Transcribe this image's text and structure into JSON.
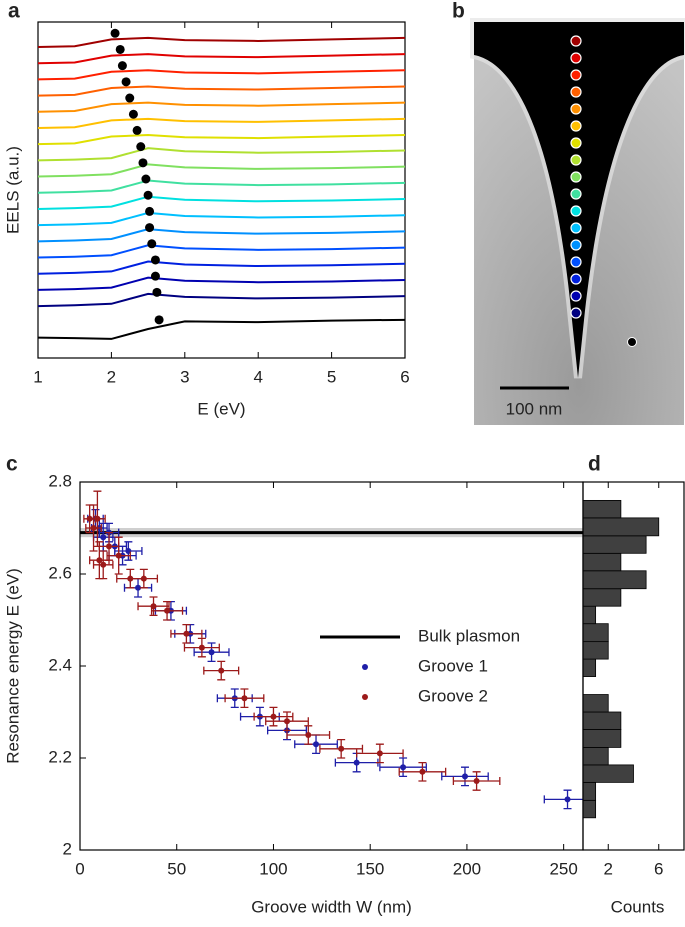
{
  "chart_data": [
    {
      "type": "line",
      "panel_label": "a",
      "xlabel": "E (eV)",
      "ylabel": "EELS (a.u.)",
      "xlim": [
        1,
        6
      ],
      "xticks": [
        1,
        2,
        3,
        4,
        5,
        6
      ],
      "ylim": [
        0,
        22
      ],
      "x": [
        1,
        1.5,
        2,
        2.5,
        3,
        4,
        5,
        6
      ],
      "series": [
        {
          "color": "#000000",
          "values": [
            1.33,
            1.3,
            1.25,
            1.9,
            2.4,
            2.35,
            2.45,
            2.5
          ],
          "peak_x": 2.65,
          "peak_y": 2.5
        },
        {
          "color": "#000080",
          "values": [
            3.4,
            3.45,
            3.55,
            4.2,
            4.0,
            3.9,
            3.95,
            4.05
          ],
          "peak_x": 2.62,
          "peak_y": 4.3
        },
        {
          "color": "#0000b0",
          "values": [
            4.46,
            4.51,
            4.61,
            5.26,
            5.06,
            4.96,
            5.01,
            5.11
          ],
          "peak_x": 2.6,
          "peak_y": 5.36
        },
        {
          "color": "#0020e0",
          "values": [
            5.52,
            5.57,
            5.67,
            6.32,
            6.12,
            6.02,
            6.07,
            6.17
          ],
          "peak_x": 2.6,
          "peak_y": 6.42
        },
        {
          "color": "#0050ff",
          "values": [
            6.58,
            6.63,
            6.73,
            7.38,
            7.18,
            7.08,
            7.13,
            7.23
          ],
          "peak_x": 2.55,
          "peak_y": 7.48
        },
        {
          "color": "#0090ff",
          "values": [
            7.64,
            7.69,
            7.79,
            8.44,
            8.24,
            8.14,
            8.19,
            8.29
          ],
          "peak_x": 2.52,
          "peak_y": 8.54
        },
        {
          "color": "#00c0ff",
          "values": [
            8.7,
            8.75,
            8.85,
            9.5,
            9.3,
            9.2,
            9.25,
            9.35
          ],
          "peak_x": 2.52,
          "peak_y": 9.6
        },
        {
          "color": "#00e0e0",
          "values": [
            9.76,
            9.81,
            9.91,
            10.56,
            10.36,
            10.26,
            10.31,
            10.41
          ],
          "peak_x": 2.5,
          "peak_y": 10.66
        },
        {
          "color": "#40e0a0",
          "values": [
            10.82,
            10.87,
            10.97,
            11.62,
            11.42,
            11.32,
            11.37,
            11.47
          ],
          "peak_x": 2.47,
          "peak_y": 11.72
        },
        {
          "color": "#80e060",
          "values": [
            11.88,
            11.93,
            12.03,
            12.68,
            12.48,
            12.38,
            12.43,
            12.53
          ],
          "peak_x": 2.43,
          "peak_y": 12.78
        },
        {
          "color": "#b0e030",
          "values": [
            12.94,
            12.99,
            13.09,
            13.74,
            13.54,
            13.44,
            13.49,
            13.59
          ],
          "peak_x": 2.4,
          "peak_y": 13.84
        },
        {
          "color": "#e0e000",
          "values": [
            14.0,
            14.05,
            14.5,
            14.6,
            14.45,
            14.4,
            14.5,
            14.6
          ],
          "peak_x": 2.35,
          "peak_y": 14.9
        },
        {
          "color": "#ffc000",
          "values": [
            15.06,
            15.11,
            15.56,
            15.66,
            15.51,
            15.46,
            15.56,
            15.66
          ],
          "peak_x": 2.3,
          "peak_y": 15.96
        },
        {
          "color": "#ff9000",
          "values": [
            16.12,
            16.17,
            16.62,
            16.72,
            16.57,
            16.52,
            16.62,
            16.72
          ],
          "peak_x": 2.25,
          "peak_y": 17.02
        },
        {
          "color": "#ff6000",
          "values": [
            17.18,
            17.23,
            17.68,
            17.78,
            17.63,
            17.58,
            17.68,
            17.78
          ],
          "peak_x": 2.2,
          "peak_y": 18.08
        },
        {
          "color": "#ff2000",
          "values": [
            18.24,
            18.29,
            18.74,
            18.84,
            18.69,
            18.64,
            18.74,
            18.84
          ],
          "peak_x": 2.15,
          "peak_y": 19.14
        },
        {
          "color": "#e00000",
          "values": [
            19.3,
            19.35,
            19.8,
            19.9,
            19.75,
            19.7,
            19.8,
            19.9
          ],
          "peak_x": 2.12,
          "peak_y": 20.2
        },
        {
          "color": "#a00000",
          "values": [
            20.36,
            20.41,
            20.86,
            20.96,
            20.81,
            20.76,
            20.86,
            20.96
          ],
          "peak_x": 2.05,
          "peak_y": 21.26
        }
      ]
    },
    {
      "type": "image",
      "panel_label": "b",
      "scale_bar_label": "100 nm"
    },
    {
      "type": "scatter",
      "panel_label": "c",
      "xlabel": "Groove width W (nm)",
      "ylabel": "Resonance energy E (eV)",
      "xlim": [
        0,
        260
      ],
      "xticks": [
        0,
        50,
        100,
        150,
        200,
        250
      ],
      "ylim": [
        2,
        2.8
      ],
      "yticks": [
        2,
        2.2,
        2.4,
        2.6,
        2.8
      ],
      "legend": "right",
      "reference": {
        "name": "Bulk plasmon",
        "value": 2.69,
        "band": 0.01,
        "color": "#000000"
      },
      "series": [
        {
          "name": "Groove 1",
          "color": "#1f1fa8",
          "x": [
            8,
            10,
            12,
            15,
            18,
            22,
            25,
            30,
            47,
            57,
            68,
            80,
            93,
            107,
            122,
            143,
            167,
            199,
            252
          ],
          "values": [
            2.72,
            2.7,
            2.68,
            2.69,
            2.66,
            2.64,
            2.65,
            2.57,
            2.52,
            2.47,
            2.43,
            2.33,
            2.29,
            2.26,
            2.23,
            2.19,
            2.18,
            2.16,
            2.11
          ],
          "xerr": [
            4,
            4,
            5,
            5,
            6,
            7,
            7,
            7,
            8,
            8,
            9,
            9,
            10,
            10,
            11,
            11,
            12,
            12,
            12
          ],
          "yerr": [
            0.02,
            0.02,
            0.03,
            0.02,
            0.02,
            0.02,
            0.02,
            0.02,
            0.02,
            0.02,
            0.02,
            0.02,
            0.02,
            0.02,
            0.02,
            0.02,
            0.02,
            0.02,
            0.02
          ]
        },
        {
          "name": "Groove 2",
          "color": "#9c1a1a",
          "x": [
            5,
            7,
            9,
            10,
            12,
            15,
            20,
            26,
            33,
            38,
            45,
            55,
            63,
            73,
            85,
            100,
            107,
            118,
            135,
            155,
            177,
            205
          ],
          "values": [
            2.72,
            2.7,
            2.72,
            2.63,
            2.62,
            2.66,
            2.64,
            2.59,
            2.59,
            2.53,
            2.52,
            2.47,
            2.44,
            2.39,
            2.33,
            2.29,
            2.28,
            2.25,
            2.22,
            2.21,
            2.17,
            2.15
          ],
          "xerr": [
            3,
            4,
            4,
            5,
            5,
            5,
            6,
            7,
            7,
            8,
            8,
            8,
            9,
            9,
            10,
            10,
            11,
            11,
            11,
            12,
            12,
            12
          ],
          "yerr": [
            0.03,
            0.05,
            0.06,
            0.04,
            0.03,
            0.03,
            0.04,
            0.02,
            0.02,
            0.02,
            0.02,
            0.02,
            0.02,
            0.02,
            0.02,
            0.02,
            0.02,
            0.02,
            0.02,
            0.02,
            0.02,
            0.02
          ]
        }
      ]
    },
    {
      "type": "histogram",
      "panel_label": "d",
      "xlabel": "Counts",
      "orientation": "horizontal",
      "color": "#404040",
      "xlim": [
        0,
        8
      ],
      "xticks": [
        2,
        6
      ],
      "ylim": [
        2,
        2.8
      ],
      "bins": [
        2.07,
        2.108,
        2.147,
        2.185,
        2.223,
        2.262,
        2.3,
        2.338,
        2.377,
        2.415,
        2.453,
        2.492,
        2.53,
        2.568,
        2.607,
        2.645,
        2.683,
        2.722,
        2.76
      ],
      "values": [
        1,
        1,
        4,
        2,
        3,
        3,
        2,
        0,
        1,
        2,
        2,
        1,
        3,
        5,
        3,
        5,
        6,
        3
      ]
    }
  ]
}
